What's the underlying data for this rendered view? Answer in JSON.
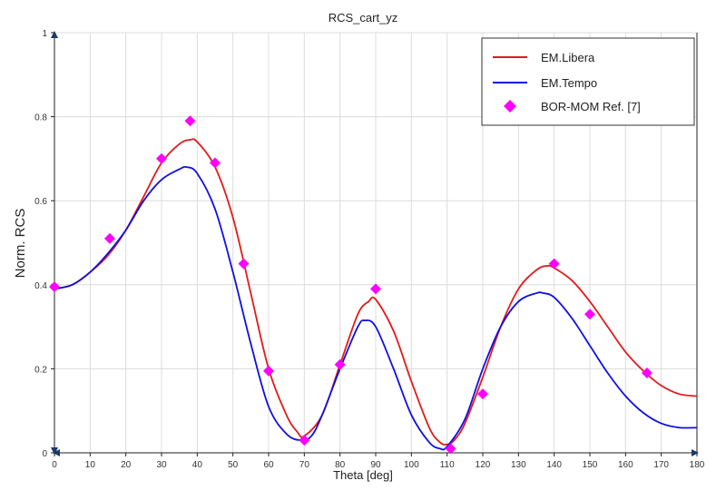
{
  "chart_data": {
    "type": "line",
    "title": "RCS_cart_yz",
    "xlabel": "Theta [deg]",
    "ylabel": "Norm. RCS",
    "xlim": [
      0,
      180
    ],
    "ylim": [
      0,
      1
    ],
    "grid": true,
    "legend_position": "top-right",
    "x_ticks": [
      0,
      10,
      20,
      30,
      40,
      50,
      60,
      70,
      80,
      90,
      100,
      110,
      120,
      130,
      140,
      150,
      160,
      170,
      180
    ],
    "x_tick_labels": [
      "0",
      "10",
      "20",
      "30",
      "40",
      "50",
      "60",
      "70",
      "80",
      "90",
      "100",
      "110",
      "120",
      "130",
      "140",
      "150",
      "160",
      "170",
      "180"
    ],
    "y_ticks": [
      0,
      0.2,
      0.4,
      0.6,
      0.8,
      1
    ],
    "y_tick_labels": [
      "0",
      "0.2",
      "0.4",
      "0.6",
      "0.8",
      "1"
    ],
    "series": [
      {
        "name": "EM.Libera",
        "kind": "line",
        "color": "#e31a1a",
        "x": [
          0,
          5,
          10,
          15,
          20,
          25,
          30,
          35,
          38,
          40,
          45,
          50,
          55,
          60,
          65,
          68,
          70,
          75,
          80,
          85,
          88,
          90,
          95,
          100,
          105,
          108,
          110,
          112,
          115,
          120,
          125,
          130,
          135,
          138,
          140,
          145,
          150,
          155,
          160,
          165,
          170,
          175,
          180
        ],
        "y": [
          0.39,
          0.4,
          0.43,
          0.47,
          0.53,
          0.61,
          0.69,
          0.735,
          0.745,
          0.74,
          0.68,
          0.56,
          0.38,
          0.2,
          0.09,
          0.05,
          0.04,
          0.09,
          0.21,
          0.33,
          0.36,
          0.365,
          0.29,
          0.17,
          0.06,
          0.025,
          0.02,
          0.03,
          0.07,
          0.18,
          0.3,
          0.39,
          0.435,
          0.445,
          0.44,
          0.41,
          0.36,
          0.3,
          0.24,
          0.195,
          0.16,
          0.14,
          0.135
        ]
      },
      {
        "name": "EM.Tempo",
        "kind": "line",
        "color": "#1010e0",
        "x": [
          0,
          5,
          10,
          15,
          20,
          25,
          30,
          35,
          37,
          40,
          45,
          50,
          55,
          60,
          65,
          69,
          72,
          75,
          80,
          85,
          87,
          90,
          95,
          100,
          105,
          108,
          110,
          115,
          120,
          125,
          130,
          135,
          137,
          140,
          145,
          150,
          155,
          160,
          165,
          170,
          175,
          180
        ],
        "y": [
          0.39,
          0.4,
          0.43,
          0.475,
          0.53,
          0.6,
          0.65,
          0.675,
          0.68,
          0.665,
          0.58,
          0.43,
          0.26,
          0.11,
          0.045,
          0.03,
          0.04,
          0.09,
          0.2,
          0.3,
          0.315,
          0.3,
          0.2,
          0.09,
          0.025,
          0.01,
          0.015,
          0.08,
          0.2,
          0.3,
          0.36,
          0.38,
          0.38,
          0.37,
          0.32,
          0.255,
          0.19,
          0.135,
          0.095,
          0.07,
          0.06,
          0.06
        ]
      },
      {
        "name": "BOR-MOM Ref. [7]",
        "kind": "marker",
        "marker": "diamond",
        "color": "#ff00ff",
        "x": [
          0,
          15.5,
          30,
          38,
          45,
          53,
          60,
          70,
          80,
          90,
          111,
          120,
          140,
          150,
          166
        ],
        "y": [
          0.395,
          0.51,
          0.7,
          0.79,
          0.69,
          0.45,
          0.195,
          0.03,
          0.21,
          0.39,
          0.01,
          0.14,
          0.45,
          0.33,
          0.19
        ]
      }
    ]
  }
}
